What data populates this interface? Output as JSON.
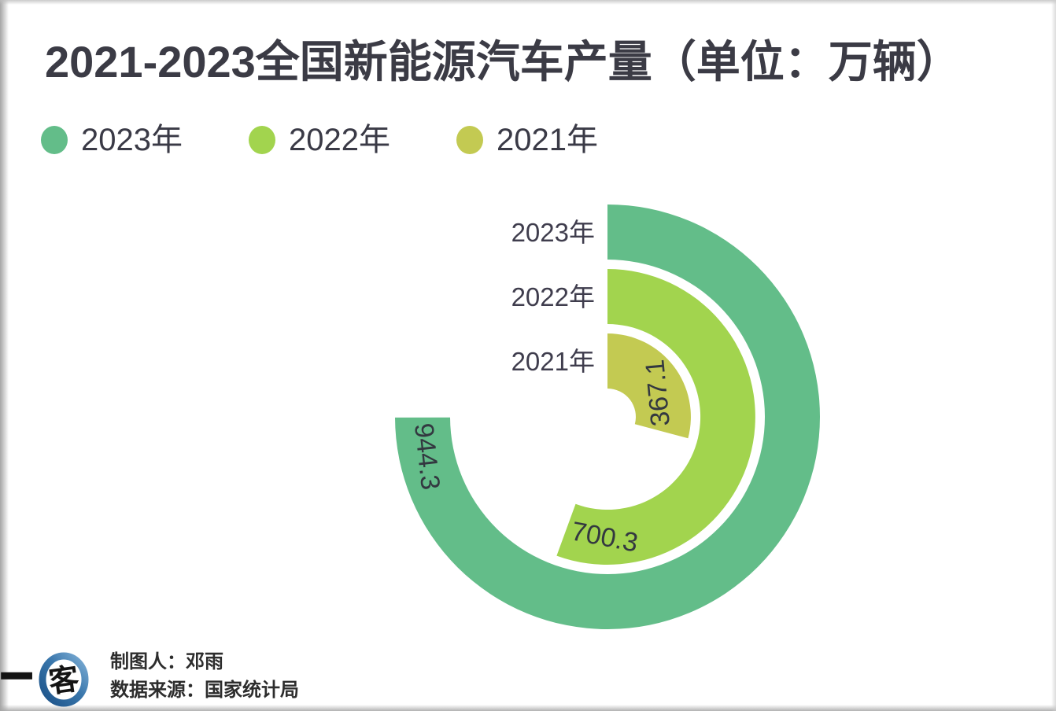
{
  "page_title": "2021-2023全国新能源汽车产量（单位：万辆）",
  "chart_data": {
    "type": "radial-bar",
    "title": "2021-2023全国新能源汽车产量（单位：万辆）",
    "unit_label": "万辆",
    "categories": [
      "2023年",
      "2022年",
      "2021年"
    ],
    "values": [
      944.3,
      700.3,
      367.1
    ],
    "value_labels": [
      "944.3",
      "700.3",
      "367.1"
    ],
    "series_colors": [
      "#63BD89",
      "#A2D44E",
      "#C3CA52"
    ],
    "value_label_color": "#333840",
    "category_label_color": "#3F3D4D",
    "layout": {
      "start_angle_deg": 0,
      "direction": "clockwise",
      "full_circle_value": 1260,
      "legend_position": "top-left",
      "value_label_position": "arc-end",
      "grid": false
    }
  },
  "footer": {
    "logo_dash": "一",
    "logo_mark": "客",
    "logo_ring_color_dark": "#245E94",
    "logo_ring_color_light": "#7FAFD6",
    "credit_line1": "制图人：邓雨",
    "credit_line2": "数据来源：国家统计局"
  }
}
